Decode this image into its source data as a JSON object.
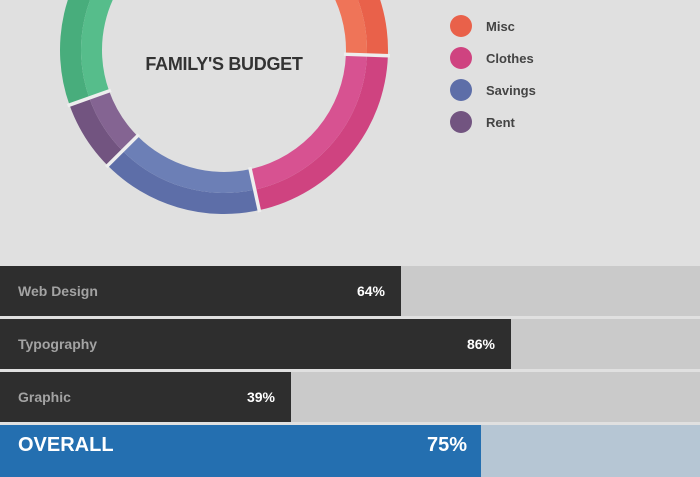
{
  "chart_data": [
    {
      "type": "pie",
      "variant": "donut",
      "title": "FAMILY'S BUDGET",
      "segments": [
        {
          "name": "Misc",
          "value": 20,
          "color": "#e9614a",
          "inner_color": "#ef7458"
        },
        {
          "name": "Clothes",
          "value": 21,
          "color": "#cf4380",
          "inner_color": "#d75291"
        },
        {
          "name": "Savings",
          "value": 16,
          "color": "#5d6ea8",
          "inner_color": "#6c7fb6"
        },
        {
          "name": "Rent",
          "value": 7,
          "color": "#725480",
          "inner_color": "#846492"
        },
        {
          "name": "",
          "value": 36,
          "color": "#48ad7c",
          "inner_color": "#56bd8b"
        }
      ],
      "legend": [
        "Misc",
        "Clothes",
        "Savings",
        "Rent"
      ],
      "legend_position": "right"
    },
    {
      "type": "bar",
      "orientation": "horizontal",
      "categories": [
        "Web Design",
        "Typography",
        "Graphic",
        "OVERALL"
      ],
      "values": [
        64,
        86,
        39,
        75
      ],
      "labels": [
        "64%",
        "86%",
        "39%",
        "75%"
      ],
      "colors": {
        "fill": "#2e2e2e",
        "track": "#cacaca",
        "overall_fill": "#246fb0",
        "overall_track": "#b6c6d4"
      }
    }
  ]
}
